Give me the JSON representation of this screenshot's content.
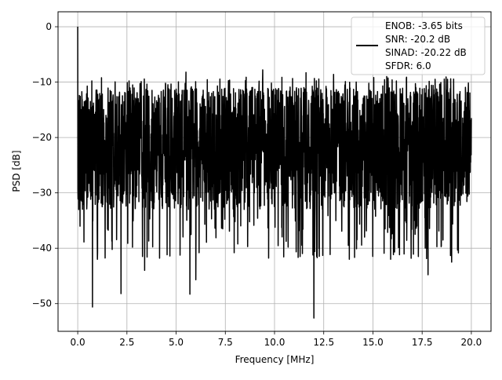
{
  "chart_data": {
    "type": "line",
    "title": "",
    "xlabel": "Frequency [MHz]",
    "ylabel": "PSD [dB]",
    "xlim": [
      -1.0,
      21.0
    ],
    "ylim": [
      -55.0,
      2.7
    ],
    "xticks": [
      0.0,
      2.5,
      5.0,
      7.5,
      10.0,
      12.5,
      15.0,
      17.5,
      20.0
    ],
    "xtick_labels": [
      "0.0",
      "2.5",
      "5.0",
      "7.5",
      "10.0",
      "12.5",
      "15.0",
      "17.5",
      "20.0"
    ],
    "yticks": [
      0,
      -10,
      -20,
      -30,
      -40,
      -50
    ],
    "ytick_labels": [
      "0",
      "−10",
      "−20",
      "−30",
      "−40",
      "−50"
    ],
    "grid": true,
    "legend_position": "top-right",
    "legend_entries": [
      "ENOB: -3.65 bits",
      "SNR: -20.2 dB",
      "SINAD: -20.22 dB",
      "SFDR: 6.0"
    ],
    "series_color": "#000000",
    "grid_color": "#b0b0b0",
    "noise_floor_db": -21,
    "notable_points": [
      {
        "x": 0.0,
        "y": 0.0
      },
      {
        "x": 0.05,
        "y": -33
      },
      {
        "x": 0.75,
        "y": -50.6
      },
      {
        "x": 1.0,
        "y": -42
      },
      {
        "x": 2.2,
        "y": -48.2
      },
      {
        "x": 3.4,
        "y": -44
      },
      {
        "x": 5.7,
        "y": -48.3
      },
      {
        "x": 6.0,
        "y": -45.7
      },
      {
        "x": 7.95,
        "y": -40.8
      },
      {
        "x": 11.3,
        "y": -41.5
      },
      {
        "x": 12.0,
        "y": -52.6
      },
      {
        "x": 13.8,
        "y": -42
      },
      {
        "x": 15.9,
        "y": -42
      },
      {
        "x": 17.8,
        "y": -44.8
      },
      {
        "x": 19.0,
        "y": -42.5
      },
      {
        "x": 5.5,
        "y": -8.2
      },
      {
        "x": 9.4,
        "y": -7.8
      },
      {
        "x": 11.6,
        "y": -8.3
      },
      {
        "x": 13.0,
        "y": -8.6
      },
      {
        "x": 16.7,
        "y": -9.3
      },
      {
        "x": 20.0,
        "y": -16.5
      }
    ]
  }
}
